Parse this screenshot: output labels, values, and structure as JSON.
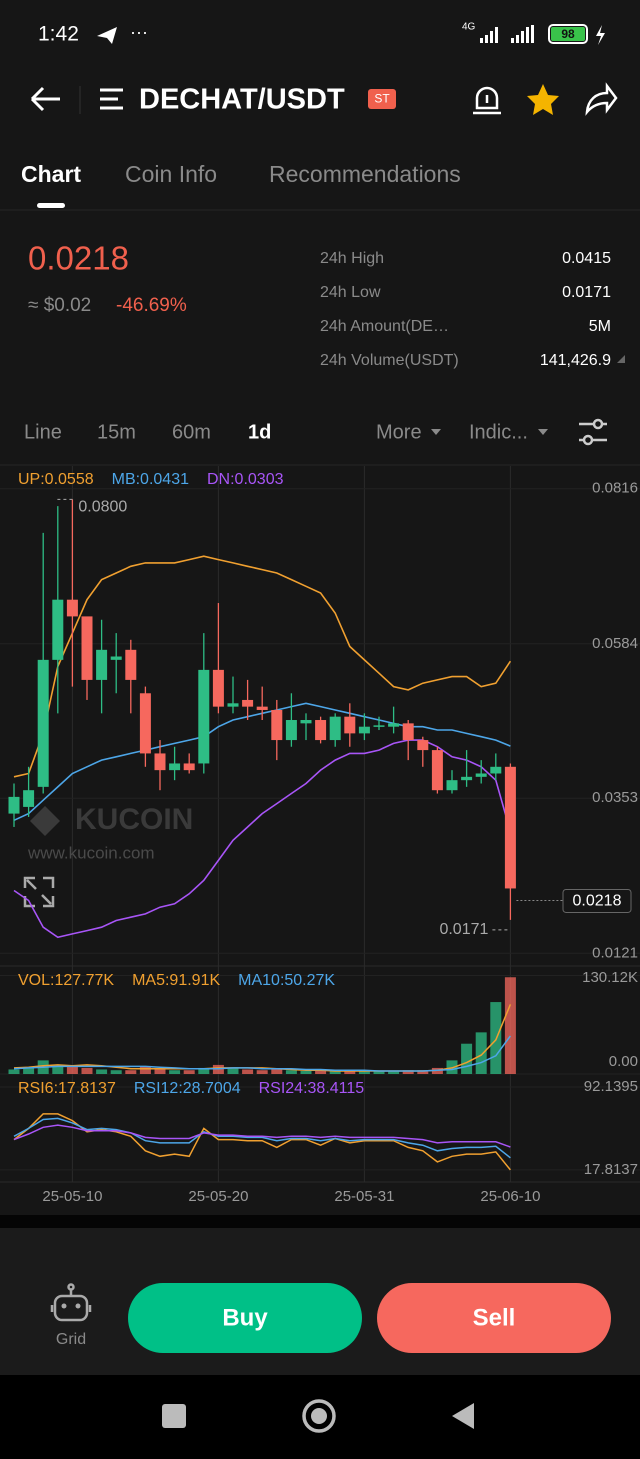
{
  "status_bar": {
    "time": "1:42",
    "network": "4G",
    "battery": "98"
  },
  "header": {
    "title": "DECHAT/USDT",
    "badge": "ST"
  },
  "tabs": [
    "Chart",
    "Coin Info",
    "Recommendations"
  ],
  "price": {
    "last": "0.0218",
    "usd": "≈ $0.02",
    "change": "-46.69%"
  },
  "stats": [
    [
      "24h High",
      "0.0415"
    ],
    [
      "24h Low",
      "0.0171"
    ],
    [
      "24h Amount(DE…",
      "5M"
    ],
    [
      "24h Volume(USDT)",
      "141,426.9"
    ]
  ],
  "intervals": [
    "Line",
    "15m",
    "60m",
    "1d",
    "More",
    "Indic..."
  ],
  "watermark": {
    "brand": "KUCOIN",
    "url": "www.kucoin.com"
  },
  "chart_data": [
    {
      "type": "candlestick",
      "categories": [
        null,
        null,
        null,
        null,
        "25-05-10",
        null,
        null,
        null,
        null,
        null,
        null,
        null,
        null,
        null,
        "25-05-20",
        null,
        null,
        null,
        null,
        null,
        null,
        null,
        null,
        null,
        "25-05-31",
        null,
        null,
        null,
        null,
        null,
        null,
        null,
        null,
        null,
        "25-06-10"
      ],
      "open": [
        0.033,
        0.034,
        0.037,
        0.056,
        0.065,
        0.0625,
        0.053,
        0.056,
        0.0575,
        0.051,
        0.042,
        0.0395,
        0.0405,
        0.0405,
        0.0545,
        0.049,
        0.05,
        0.049,
        0.0485,
        0.044,
        0.0465,
        0.047,
        0.044,
        0.0475,
        0.045,
        0.046,
        0.046,
        0.0465,
        0.044,
        0.0425,
        0.0365,
        0.038,
        0.0385,
        0.039,
        0.04
      ],
      "high": [
        0.0375,
        0.04,
        0.075,
        0.079,
        0.08,
        0.062,
        0.062,
        0.06,
        0.059,
        0.052,
        0.044,
        0.043,
        0.042,
        0.06,
        0.0645,
        0.0535,
        0.053,
        0.052,
        0.05,
        0.051,
        0.048,
        0.0475,
        0.048,
        0.0495,
        0.048,
        0.0475,
        0.049,
        0.047,
        0.0445,
        0.043,
        0.0395,
        0.0425,
        0.041,
        0.042,
        0.0405
      ],
      "low": [
        0.031,
        0.0325,
        0.036,
        0.048,
        0.052,
        0.05,
        0.048,
        0.051,
        0.048,
        0.04,
        0.0365,
        0.038,
        0.039,
        0.039,
        0.048,
        0.048,
        0.047,
        0.047,
        0.041,
        0.043,
        0.044,
        0.0435,
        0.043,
        0.043,
        0.044,
        0.0455,
        0.045,
        0.041,
        0.04,
        0.036,
        0.036,
        0.037,
        0.0375,
        0.038,
        0.0171
      ],
      "close": [
        0.0355,
        0.0365,
        0.056,
        0.065,
        0.0625,
        0.053,
        0.0575,
        0.0565,
        0.053,
        0.042,
        0.0395,
        0.0405,
        0.0395,
        0.0545,
        0.049,
        0.0495,
        0.049,
        0.0485,
        0.044,
        0.047,
        0.047,
        0.044,
        0.0475,
        0.045,
        0.046,
        0.0462,
        0.0465,
        0.044,
        0.0425,
        0.0365,
        0.038,
        0.0385,
        0.039,
        0.04,
        0.0218
      ],
      "up_color": "#2ebd85",
      "down_color": "#f6685e",
      "series": [
        {
          "name": "UP:0.0558",
          "color": "#f0a030",
          "values": [
            0.0385,
            0.039,
            0.045,
            0.055,
            0.06,
            0.065,
            0.068,
            0.069,
            0.07,
            0.0705,
            0.0705,
            0.0705,
            0.071,
            0.0715,
            0.071,
            0.0705,
            0.07,
            0.0695,
            0.069,
            0.068,
            0.067,
            0.066,
            0.063,
            0.058,
            0.056,
            0.054,
            0.052,
            0.0515,
            0.0525,
            0.053,
            0.0535,
            0.0535,
            0.052,
            0.0525,
            0.0558
          ]
        },
        {
          "name": "MB:0.0431",
          "color": "#4da6e8",
          "values": [
            0.032,
            0.033,
            0.035,
            0.037,
            0.039,
            0.04,
            0.041,
            0.0415,
            0.042,
            0.0425,
            0.043,
            0.0435,
            0.044,
            0.0445,
            0.046,
            0.047,
            0.0475,
            0.048,
            0.0485,
            0.049,
            0.0495,
            0.049,
            0.0485,
            0.048,
            0.0475,
            0.047,
            0.0465,
            0.046,
            0.046,
            0.0455,
            0.0455,
            0.045,
            0.0445,
            0.044,
            0.0431
          ]
        },
        {
          "name": "DN:0.0303",
          "color": "#a855f7",
          "values": [
            0.0215,
            0.02,
            0.016,
            0.0145,
            0.015,
            0.0155,
            0.016,
            0.017,
            0.0175,
            0.018,
            0.019,
            0.0195,
            0.021,
            0.023,
            0.026,
            0.029,
            0.031,
            0.033,
            0.0345,
            0.036,
            0.0375,
            0.0395,
            0.041,
            0.042,
            0.042,
            0.0425,
            0.0435,
            0.044,
            0.044,
            0.043,
            0.0415,
            0.041,
            0.04,
            0.038,
            0.0303
          ]
        }
      ],
      "ylim": [
        0.0102,
        0.085
      ],
      "yticks": [
        0.0816,
        0.0584,
        0.0353,
        0.0121
      ],
      "max_label": {
        "value": 0.08,
        "label": "0.0800"
      },
      "min_label": 0.0171,
      "last_price": 0.0218
    },
    {
      "type": "bar",
      "name": "VOL:127.77K",
      "name_color": "#f0a030",
      "values": [
        6,
        8,
        18,
        12,
        10,
        8,
        6,
        5,
        5,
        10,
        8,
        5,
        5,
        8,
        12,
        8,
        6,
        5,
        6,
        5,
        4,
        4,
        4,
        4,
        4,
        4,
        4,
        5,
        5,
        8,
        18,
        40,
        55,
        95,
        127.77
      ],
      "series": [
        {
          "name": "MA5:91.91K",
          "color": "#f0a030",
          "values": [
            8,
            9,
            11,
            12,
            11,
            12,
            11,
            9,
            7,
            7,
            7,
            7,
            7,
            7,
            8,
            8,
            8,
            8,
            7,
            6,
            5,
            5,
            4,
            4,
            4,
            4,
            4,
            4,
            4,
            5,
            8,
            15,
            25,
            45,
            91.91
          ]
        },
        {
          "name": "MA10:50.27K",
          "color": "#4da6e8",
          "values": [
            7,
            8,
            9,
            10,
            10,
            10,
            10,
            10,
            10,
            10,
            9,
            8,
            7,
            7,
            7,
            8,
            8,
            7,
            7,
            7,
            6,
            6,
            5,
            5,
            5,
            4,
            4,
            4,
            4,
            5,
            6,
            10,
            15,
            24,
            50.27
          ]
        }
      ],
      "ylim": [
        0,
        140
      ],
      "yticks": [
        {
          "value": 130.12,
          "label": "130.12K"
        },
        {
          "value": 0,
          "label": "0.00"
        }
      ]
    },
    {
      "type": "line",
      "series": [
        {
          "name": "RSI6:17.8137",
          "color": "#f0a030",
          "values": [
            45,
            55,
            68,
            68,
            62,
            52,
            54,
            52,
            48,
            35,
            30,
            32,
            30,
            55,
            45,
            45,
            44,
            44,
            38,
            45,
            45,
            40,
            46,
            42,
            44,
            44,
            44,
            38,
            35,
            25,
            30,
            32,
            32,
            34,
            17.8137
          ]
        },
        {
          "name": "RSI12:28.7004",
          "color": "#4da6e8",
          "values": [
            48,
            55,
            63,
            64,
            60,
            54,
            55,
            54,
            51,
            44,
            42,
            42,
            42,
            52,
            48,
            48,
            47,
            47,
            44,
            46,
            46,
            44,
            46,
            44,
            45,
            45,
            45,
            42,
            40,
            35,
            37,
            38,
            38,
            39,
            28.7004
          ]
        },
        {
          "name": "RSI24:38.4115",
          "color": "#a855f7",
          "values": [
            45,
            50,
            56,
            58,
            56,
            53,
            53,
            53,
            51,
            47,
            46,
            46,
            46,
            51,
            49,
            49,
            48,
            48,
            47,
            48,
            48,
            47,
            48,
            47,
            47,
            47,
            47,
            46,
            45,
            42,
            43,
            43,
            43,
            43,
            38.4115
          ]
        }
      ],
      "ylim": [
        7,
        102
      ],
      "yticks": [
        92.1395,
        17.8137
      ]
    }
  ],
  "footer": {
    "grid": "Grid",
    "buy": "Buy",
    "sell": "Sell"
  }
}
